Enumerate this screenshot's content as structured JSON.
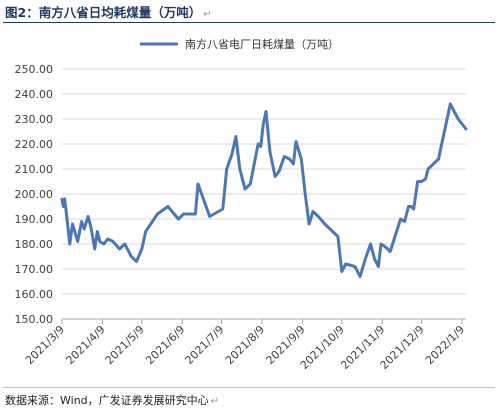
{
  "figure": {
    "title": "图2：南方八省日均耗煤量（万吨）",
    "return_mark": "↵",
    "source": "数据来源：Wind，广发证券发展研究中心",
    "line_color": "#4a78b5"
  },
  "chart_data": {
    "type": "line",
    "title": "",
    "xlabel": "",
    "ylabel": "",
    "legend": "top-center",
    "grid": true,
    "ylim": [
      150,
      250
    ],
    "ytick_values": [
      150,
      160,
      170,
      180,
      190,
      200,
      210,
      220,
      230,
      240,
      250
    ],
    "ytick_labels": [
      "150.00",
      "160.00",
      "170.00",
      "180.00",
      "190.00",
      "200.00",
      "210.00",
      "220.00",
      "230.00",
      "240.00",
      "250.00"
    ],
    "xlim": [
      "2021-03-09",
      "2022-01-12"
    ],
    "xticks": [
      {
        "date": "2021-03-09",
        "label": "2021/3/9"
      },
      {
        "date": "2021-04-09",
        "label": "2021/4/9"
      },
      {
        "date": "2021-05-09",
        "label": "2021/5/9"
      },
      {
        "date": "2021-06-09",
        "label": "2021/6/9"
      },
      {
        "date": "2021-07-09",
        "label": "2021/7/9"
      },
      {
        "date": "2021-08-09",
        "label": "2021/8/9"
      },
      {
        "date": "2021-09-09",
        "label": "2021/9/9"
      },
      {
        "date": "2021-10-09",
        "label": "2021/10/9"
      },
      {
        "date": "2021-11-09",
        "label": "2021/11/9"
      },
      {
        "date": "2021-12-09",
        "label": "2021/12/9"
      },
      {
        "date": "2022-01-09",
        "label": "2022/1/9"
      }
    ],
    "series": [
      {
        "name": "南方八省电厂日耗煤量（万吨）",
        "color": "#4a78b5",
        "points": [
          [
            "2021-03-09",
            198
          ],
          [
            "2021-03-10",
            195
          ],
          [
            "2021-03-11",
            198
          ],
          [
            "2021-03-12",
            194
          ],
          [
            "2021-03-15",
            180
          ],
          [
            "2021-03-17",
            188
          ],
          [
            "2021-03-21",
            181
          ],
          [
            "2021-03-24",
            189
          ],
          [
            "2021-03-26",
            186
          ],
          [
            "2021-03-29",
            191
          ],
          [
            "2021-03-31",
            187
          ],
          [
            "2021-04-03",
            178
          ],
          [
            "2021-04-05",
            185
          ],
          [
            "2021-04-07",
            181
          ],
          [
            "2021-04-10",
            180
          ],
          [
            "2021-04-13",
            182
          ],
          [
            "2021-04-17",
            181
          ],
          [
            "2021-04-22",
            178
          ],
          [
            "2021-04-26",
            180
          ],
          [
            "2021-05-01",
            175
          ],
          [
            "2021-05-05",
            173
          ],
          [
            "2021-05-09",
            178
          ],
          [
            "2021-05-12",
            185
          ],
          [
            "2021-05-21",
            192
          ],
          [
            "2021-05-29",
            195
          ],
          [
            "2021-06-06",
            190
          ],
          [
            "2021-06-10",
            192
          ],
          [
            "2021-06-19",
            192
          ],
          [
            "2021-06-21",
            204
          ],
          [
            "2021-06-30",
            191
          ],
          [
            "2021-07-10",
            194
          ],
          [
            "2021-07-13",
            210
          ],
          [
            "2021-07-17",
            216
          ],
          [
            "2021-07-20",
            223
          ],
          [
            "2021-07-23",
            210
          ],
          [
            "2021-07-27",
            202
          ],
          [
            "2021-07-31",
            204
          ],
          [
            "2021-08-03",
            212
          ],
          [
            "2021-08-06",
            220
          ],
          [
            "2021-08-08",
            219
          ],
          [
            "2021-08-10",
            228
          ],
          [
            "2021-08-12",
            233
          ],
          [
            "2021-08-15",
            217
          ],
          [
            "2021-08-19",
            207
          ],
          [
            "2021-08-22",
            209
          ],
          [
            "2021-08-26",
            215
          ],
          [
            "2021-08-30",
            214
          ],
          [
            "2021-09-02",
            212
          ],
          [
            "2021-09-04",
            221
          ],
          [
            "2021-09-08",
            214
          ],
          [
            "2021-09-11",
            200
          ],
          [
            "2021-09-14",
            188
          ],
          [
            "2021-09-17",
            193
          ],
          [
            "2021-09-21",
            191
          ],
          [
            "2021-09-26",
            188
          ],
          [
            "2021-10-06",
            183
          ],
          [
            "2021-10-09",
            169
          ],
          [
            "2021-10-12",
            172
          ],
          [
            "2021-10-19",
            171
          ],
          [
            "2021-10-23",
            167
          ],
          [
            "2021-10-27",
            174
          ],
          [
            "2021-10-31",
            180
          ],
          [
            "2021-11-03",
            174
          ],
          [
            "2021-11-06",
            171
          ],
          [
            "2021-11-08",
            180
          ],
          [
            "2021-11-11",
            179
          ],
          [
            "2021-11-15",
            177
          ],
          [
            "2021-11-23",
            190
          ],
          [
            "2021-11-26",
            189
          ],
          [
            "2021-11-29",
            195
          ],
          [
            "2021-12-01",
            195
          ],
          [
            "2021-12-03",
            194
          ],
          [
            "2021-12-06",
            205
          ],
          [
            "2021-12-09",
            205
          ],
          [
            "2021-12-12",
            206
          ],
          [
            "2021-12-14",
            210
          ],
          [
            "2021-12-22",
            214
          ],
          [
            "2021-12-31",
            236
          ],
          [
            "2022-01-03",
            233
          ],
          [
            "2022-01-06",
            230
          ],
          [
            "2022-01-09",
            228
          ],
          [
            "2022-01-12",
            226
          ]
        ]
      }
    ]
  }
}
